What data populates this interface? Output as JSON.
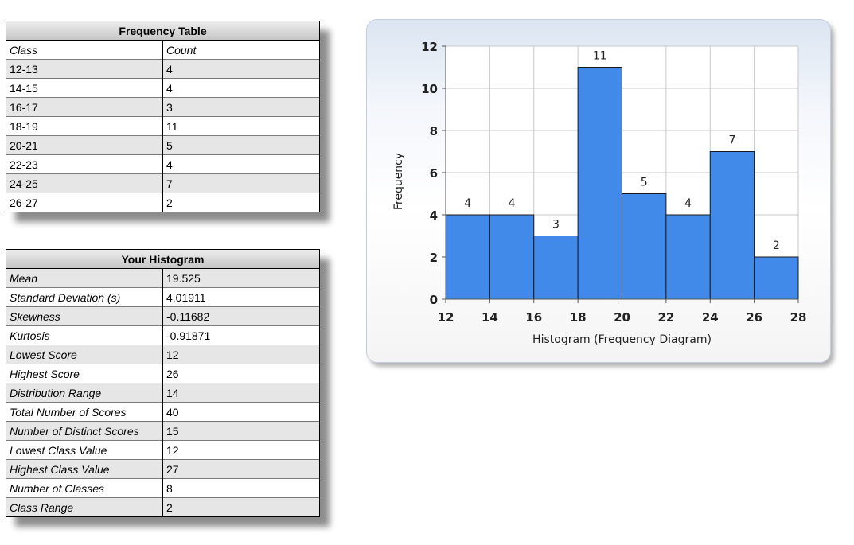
{
  "frequency_table": {
    "title": "Frequency Table",
    "headers": [
      "Class",
      "Count"
    ],
    "rows": [
      [
        "12-13",
        "4"
      ],
      [
        "14-15",
        "4"
      ],
      [
        "16-17",
        "3"
      ],
      [
        "18-19",
        "11"
      ],
      [
        "20-21",
        "5"
      ],
      [
        "22-23",
        "4"
      ],
      [
        "24-25",
        "7"
      ],
      [
        "26-27",
        "2"
      ]
    ]
  },
  "histogram_table": {
    "title": "Your Histogram",
    "rows": [
      [
        "Mean",
        "19.525"
      ],
      [
        "Standard Deviation (s)",
        "4.01911"
      ],
      [
        "Skewness",
        "-0.11682"
      ],
      [
        "Kurtosis",
        "-0.91871"
      ],
      [
        "Lowest Score",
        "12"
      ],
      [
        "Highest Score",
        "26"
      ],
      [
        "Distribution Range",
        "14"
      ],
      [
        "Total Number of Scores",
        "40"
      ],
      [
        "Number of Distinct Scores",
        "15"
      ],
      [
        "Lowest Class Value",
        "12"
      ],
      [
        "Highest Class Value",
        "27"
      ],
      [
        "Number of Classes",
        "8"
      ],
      [
        "Class Range",
        "2"
      ]
    ]
  },
  "chart_data": {
    "type": "bar",
    "bin_edges": [
      12,
      14,
      16,
      18,
      20,
      22,
      24,
      26,
      28
    ],
    "values": [
      4,
      4,
      3,
      11,
      5,
      4,
      7,
      2
    ],
    "data_labels": [
      "4",
      "4",
      "3",
      "11",
      "5",
      "4",
      "7",
      "2"
    ],
    "xlabel": "Histogram (Frequency Diagram)",
    "ylabel": "Frequency",
    "xlim": [
      12,
      28
    ],
    "ylim": [
      0,
      12
    ],
    "x_ticks": [
      "12",
      "14",
      "16",
      "18",
      "20",
      "22",
      "24",
      "26",
      "28"
    ],
    "y_ticks": [
      "0",
      "2",
      "4",
      "6",
      "8",
      "10",
      "12"
    ],
    "grid": true,
    "bar_color": "#428aea",
    "bar_edge_color": "#1a1a1a"
  }
}
